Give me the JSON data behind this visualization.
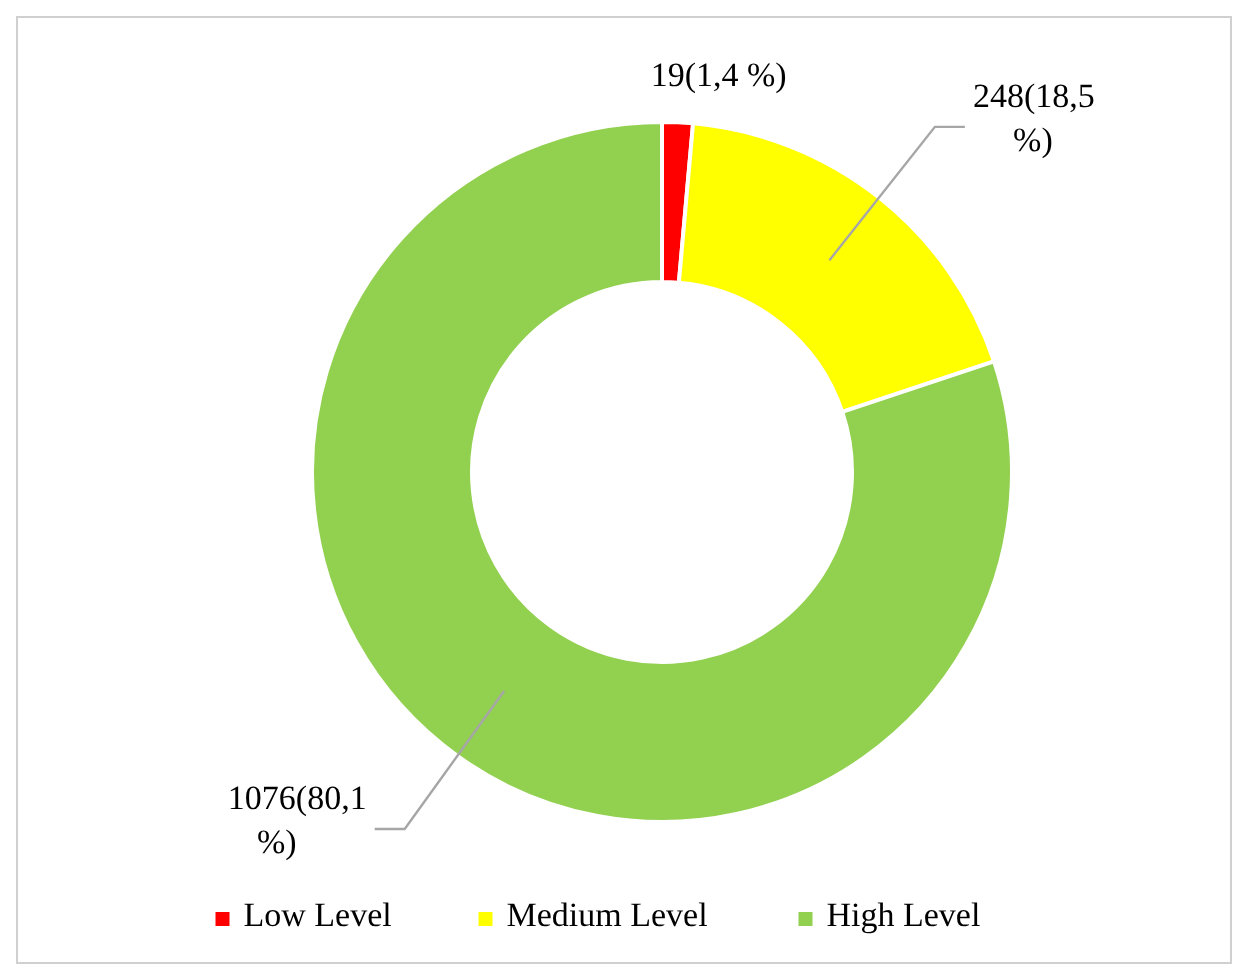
{
  "chart_data": {
    "type": "donut",
    "categories": [
      "Low Level",
      "Medium Level",
      "High Level"
    ],
    "values": [
      19,
      248,
      1076
    ],
    "colors": [
      "#ff0000",
      "#ffff00",
      "#92d050"
    ],
    "value_labels": [
      "19(1,4 %)",
      "248(18,5 %)",
      "1076(80,1 %)"
    ],
    "legend": "bottom"
  }
}
